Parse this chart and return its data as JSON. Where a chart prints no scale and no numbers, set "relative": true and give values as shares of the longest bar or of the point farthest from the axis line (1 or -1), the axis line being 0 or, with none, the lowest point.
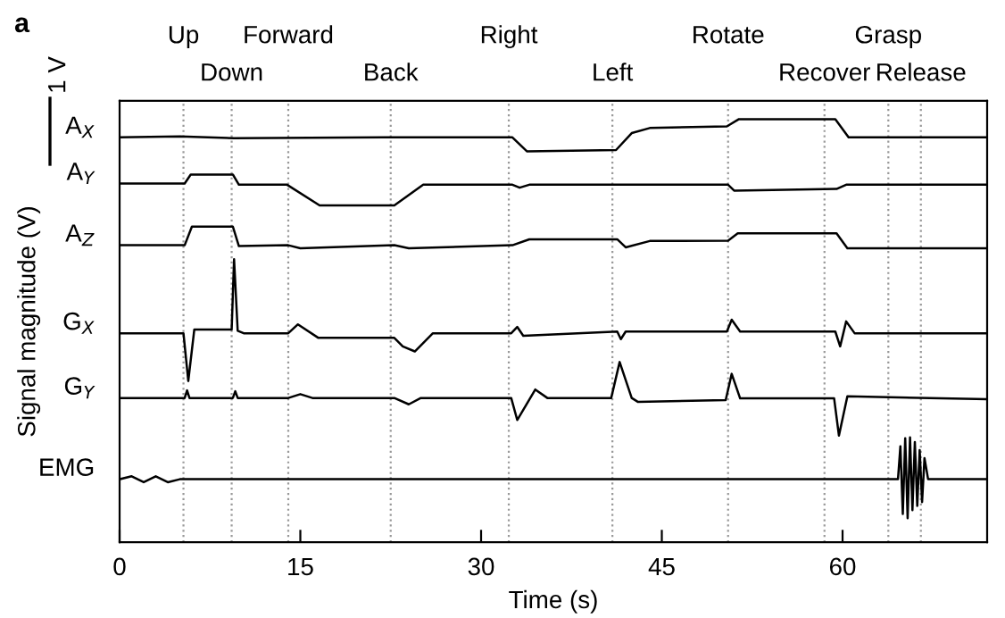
{
  "chart_data": {
    "type": "line",
    "relative": true,
    "xlabel": "Time (s)",
    "ylabel": "Signal magnitude (V)",
    "xlim": [
      0,
      72
    ],
    "xticks": [
      0,
      15,
      30,
      45,
      60
    ],
    "grid": false,
    "marker": "none",
    "line_style": "solid",
    "annotations": [
      "a",
      "1 V"
    ],
    "ref_lines": [
      {
        "axis": "x",
        "value": 5.3,
        "label": "Up",
        "color": "#999999",
        "line_style": "dotted"
      },
      {
        "axis": "x",
        "value": 9.3,
        "label": "Down",
        "color": "#999999",
        "line_style": "dotted"
      },
      {
        "axis": "x",
        "value": 14.0,
        "label": "Forward",
        "color": "#999999",
        "line_style": "dotted"
      },
      {
        "axis": "x",
        "value": 22.5,
        "label": "Back",
        "color": "#999999",
        "line_style": "dotted"
      },
      {
        "axis": "x",
        "value": 32.3,
        "label": "Right",
        "color": "#999999",
        "line_style": "dotted"
      },
      {
        "axis": "x",
        "value": 40.9,
        "label": "Left",
        "color": "#999999",
        "line_style": "dotted"
      },
      {
        "axis": "x",
        "value": 50.5,
        "label": "Rotate",
        "color": "#999999",
        "line_style": "dotted"
      },
      {
        "axis": "x",
        "value": 58.5,
        "label": "Recover",
        "color": "#999999",
        "line_style": "dotted"
      },
      {
        "axis": "x",
        "value": 63.8,
        "label": "Grasp",
        "color": "#999999",
        "line_style": "dotted"
      },
      {
        "axis": "x",
        "value": 66.5,
        "label": "Release",
        "color": "#999999",
        "line_style": "dotted"
      }
    ],
    "series": [
      {
        "name": "A$_{X}$",
        "color": "#000000",
        "x": [
          0,
          5,
          9.5,
          22,
          32.6,
          33.8,
          41.2,
          42.5,
          44,
          50.4,
          51.4,
          59.4,
          60.5,
          72
        ],
        "values": [
          0.957,
          0.959,
          0.955,
          0.957,
          0.957,
          0.924,
          0.927,
          0.967,
          0.979,
          0.983,
          1.0,
          1.0,
          0.957,
          0.957
        ]
      },
      {
        "name": "A$_{Y}$",
        "color": "#000000",
        "x": [
          0,
          5.4,
          5.9,
          9.4,
          9.9,
          13.9,
          16.6,
          22.8,
          25.2,
          32.6,
          33.2,
          34,
          50.5,
          51,
          59.5,
          60.3,
          72
        ],
        "values": [
          0.848,
          0.848,
          0.869,
          0.869,
          0.845,
          0.845,
          0.796,
          0.796,
          0.845,
          0.845,
          0.838,
          0.845,
          0.845,
          0.831,
          0.835,
          0.845,
          0.845
        ]
      },
      {
        "name": "A$_{Z}$",
        "color": "#000000",
        "x": [
          0,
          5.4,
          6,
          9.4,
          9.9,
          14,
          15,
          22.8,
          24,
          32.6,
          34,
          41.3,
          42,
          44,
          50.5,
          51.3,
          59.5,
          60.4,
          72
        ],
        "values": [
          0.702,
          0.702,
          0.746,
          0.746,
          0.7,
          0.702,
          0.695,
          0.702,
          0.695,
          0.702,
          0.716,
          0.716,
          0.697,
          0.712,
          0.713,
          0.73,
          0.73,
          0.695,
          0.695
        ]
      },
      {
        "name": "G$_{X}$",
        "color": "#000000",
        "x": [
          0,
          5.3,
          5.7,
          6.2,
          9.3,
          9.5,
          9.8,
          10.3,
          14,
          14.8,
          16.5,
          22.8,
          23.5,
          24.5,
          26,
          32.5,
          33,
          33.5,
          41.3,
          41.6,
          42,
          50.4,
          50.8,
          51.5,
          59.4,
          59.8,
          60.3,
          61,
          72
        ],
        "values": [
          0.494,
          0.494,
          0.381,
          0.503,
          0.503,
          0.669,
          0.5,
          0.494,
          0.494,
          0.515,
          0.483,
          0.483,
          0.463,
          0.451,
          0.494,
          0.494,
          0.509,
          0.488,
          0.498,
          0.48,
          0.498,
          0.498,
          0.526,
          0.498,
          0.498,
          0.463,
          0.522,
          0.494,
          0.494
        ]
      },
      {
        "name": "G$_{Y}$",
        "color": "#000000",
        "x": [
          0,
          5.4,
          5.6,
          5.8,
          9.4,
          9.6,
          9.8,
          14,
          15,
          16,
          22.8,
          24,
          25,
          32.5,
          33,
          34.5,
          35.5,
          40.8,
          41.5,
          42.5,
          43,
          50.3,
          50.8,
          51.5,
          59.3,
          59.7,
          60.4,
          72
        ],
        "values": [
          0.341,
          0.341,
          0.359,
          0.341,
          0.341,
          0.357,
          0.341,
          0.341,
          0.35,
          0.341,
          0.341,
          0.326,
          0.341,
          0.341,
          0.289,
          0.361,
          0.341,
          0.341,
          0.426,
          0.341,
          0.332,
          0.336,
          0.398,
          0.34,
          0.34,
          0.252,
          0.345,
          0.338
        ]
      },
      {
        "name": "EMG",
        "color": "#000000",
        "x": [
          0,
          1,
          2,
          3,
          4,
          5,
          64.6,
          64.8,
          65,
          65.2,
          65.4,
          65.6,
          65.8,
          66,
          66.2,
          66.4,
          66.6,
          66.8,
          67.1,
          67.5,
          72
        ],
        "values": [
          0.149,
          0.156,
          0.142,
          0.156,
          0.142,
          0.149,
          0.149,
          0.227,
          0.067,
          0.246,
          0.057,
          0.248,
          0.076,
          0.237,
          0.086,
          0.218,
          0.095,
          0.199,
          0.149,
          0.149,
          0.149
        ]
      }
    ]
  }
}
